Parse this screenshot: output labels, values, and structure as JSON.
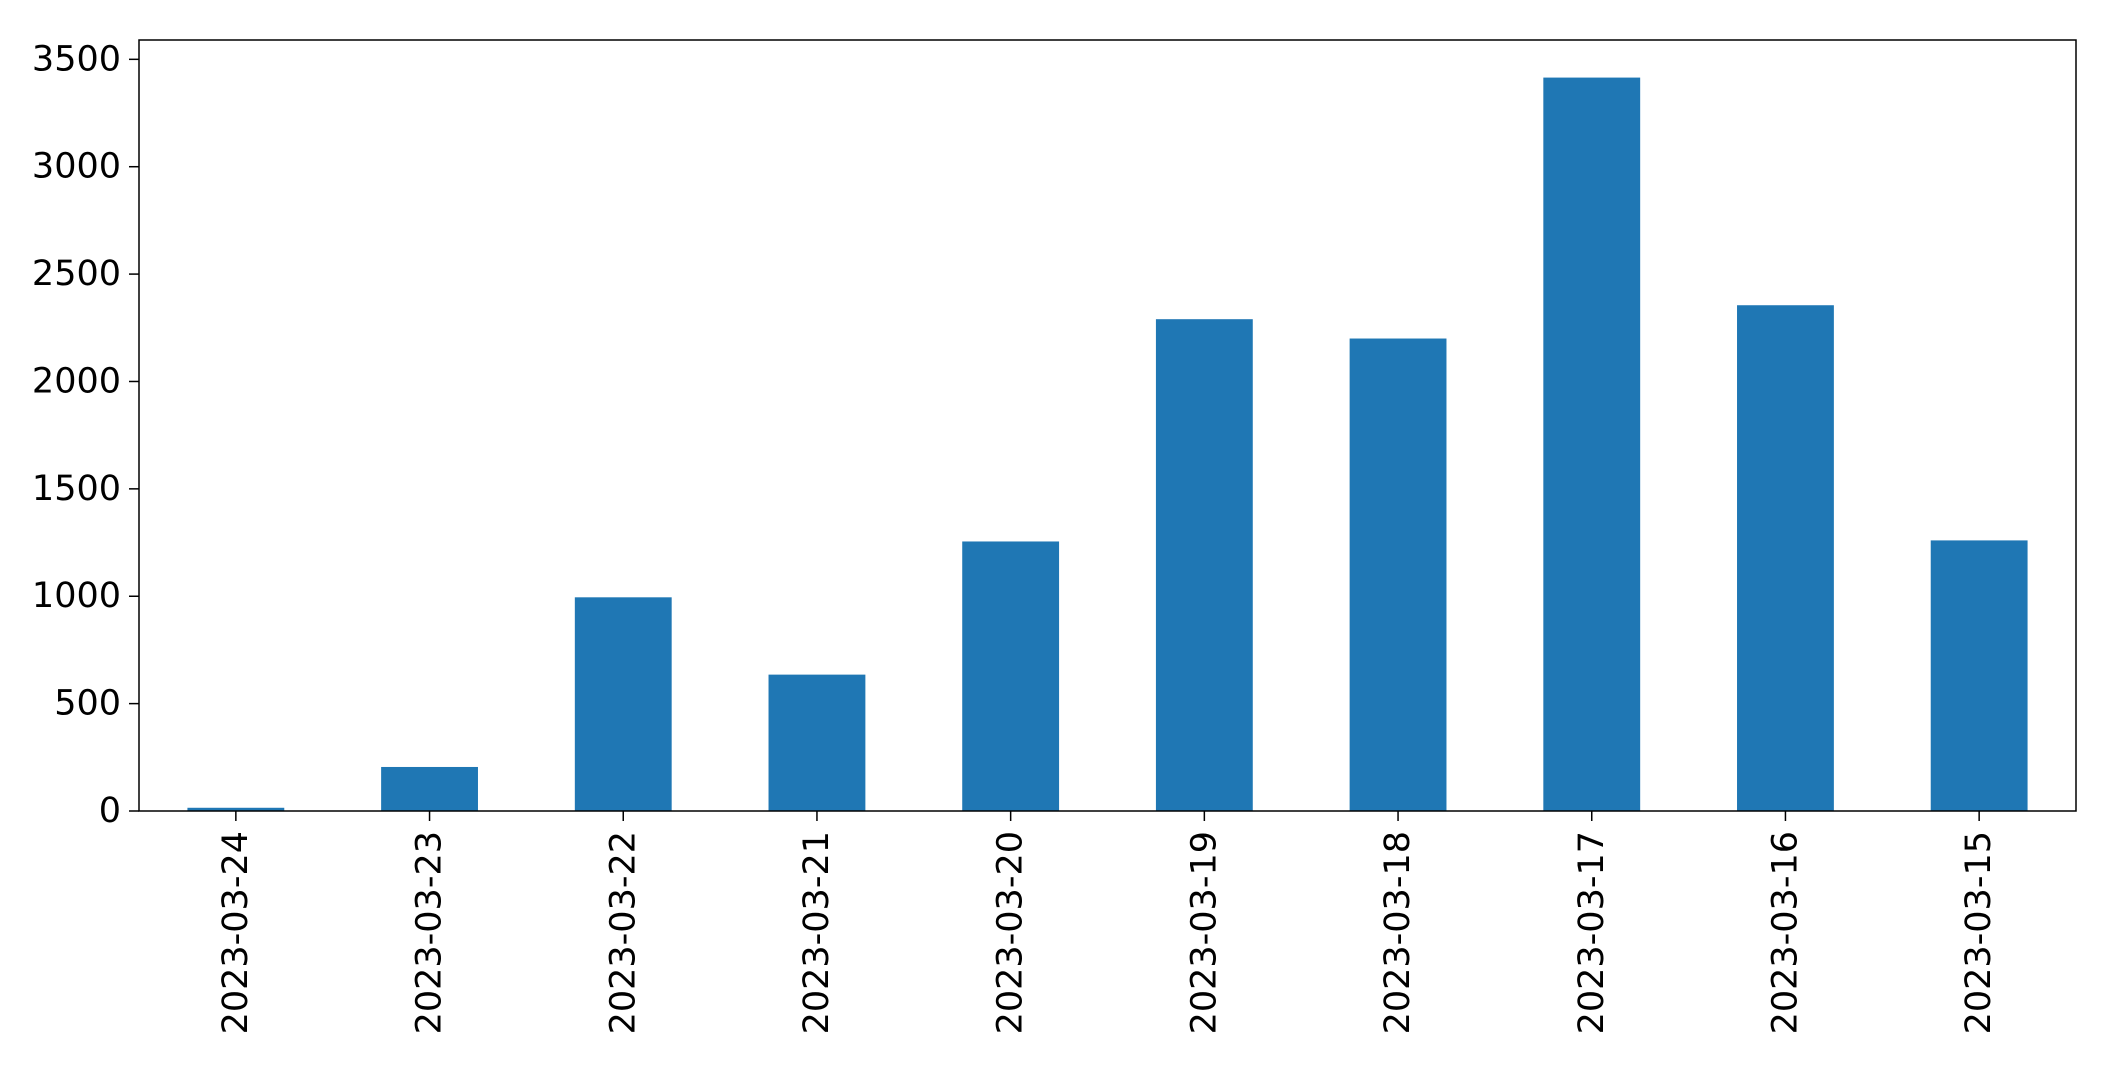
{
  "chart_data": {
    "type": "bar",
    "title": "",
    "xlabel": "",
    "ylabel": "",
    "categories": [
      "2023-03-24",
      "2023-03-23",
      "2023-03-22",
      "2023-03-21",
      "2023-03-20",
      "2023-03-19",
      "2023-03-18",
      "2023-03-17",
      "2023-03-16",
      "2023-03-15"
    ],
    "series": [
      {
        "values": [
          15,
          205,
          995,
          635,
          1255,
          2290,
          2200,
          3415,
          2355,
          1260
        ]
      }
    ],
    "ylim": [
      0,
      3590
    ],
    "yticks": [
      0,
      500,
      1000,
      1500,
      2000,
      2500,
      3000,
      3500
    ],
    "bar_color": "#1f77b4",
    "grid": false,
    "legend": "none"
  }
}
